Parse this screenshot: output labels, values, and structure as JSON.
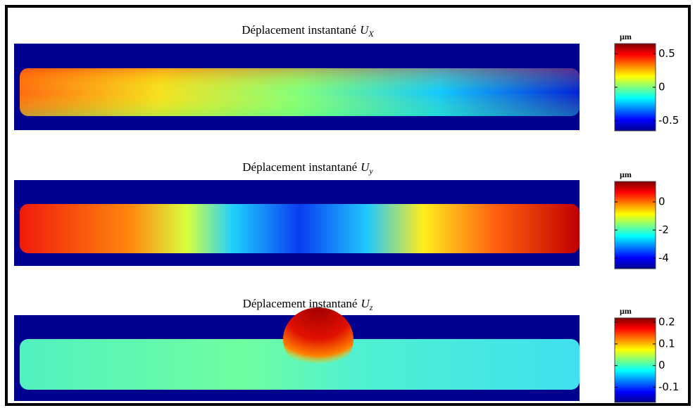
{
  "chart_data": [
    {
      "type": "heatmap",
      "title": "Déplacement instantané",
      "variable": "U",
      "subscript": "X",
      "unit": "µm",
      "clim": [
        -0.65,
        0.65
      ],
      "cticks": [
        0.5,
        0,
        -0.5
      ]
    },
    {
      "type": "heatmap",
      "title": "Déplacement instantané",
      "variable": "U",
      "subscript": "y",
      "unit": "µm",
      "clim": [
        -4.75,
        1.45
      ],
      "cticks": [
        0,
        -2,
        -4
      ]
    },
    {
      "type": "heatmap",
      "title": "Déplacement instantané",
      "variable": "U",
      "subscript": "z",
      "unit": "µm",
      "clim": [
        -0.17,
        0.22
      ],
      "cticks": [
        0.2,
        0.1,
        0,
        -0.1
      ]
    }
  ]
}
